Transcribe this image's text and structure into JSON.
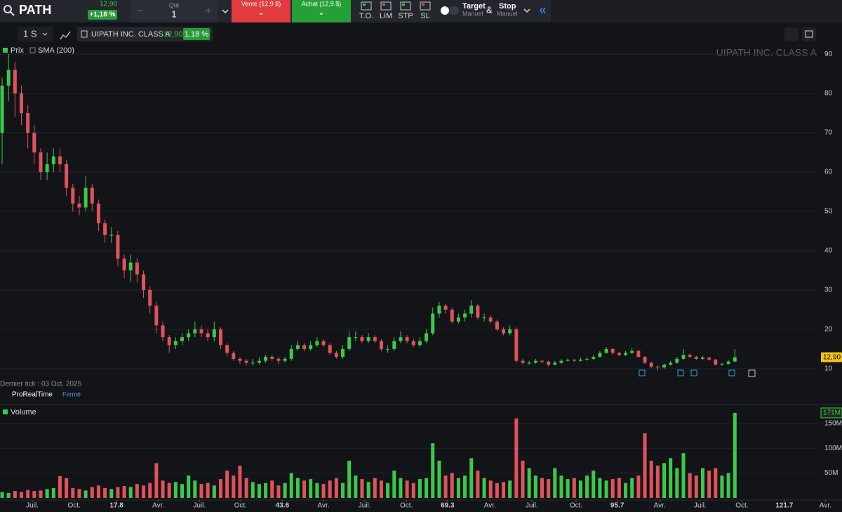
{
  "toolbar": {
    "symbol": "PATH",
    "price": "12,90",
    "change": "+1,18 %",
    "qty_label": "Qté",
    "qty": "1",
    "sell": "Vente (12,9 $)",
    "sell_value": "-",
    "buy": "Achat (12,9 $)",
    "buy_value": "-",
    "order_types": [
      "T.O.",
      "LIM",
      "STP",
      "SL"
    ],
    "target": "Target",
    "target_mode": "Manuel",
    "amp": "&",
    "stop": "Stop",
    "stop_mode": "Manuel"
  },
  "chart_header": {
    "interval": "1 S",
    "instrument": "UIPATH INC. CLASS A",
    "price": "12,90",
    "change": "1.18 %",
    "legend": [
      "Prix",
      "SMA (200)"
    ],
    "watermark": "UIPATH INC. CLASS A",
    "last_tick": "Dernier tick : 03 Oct. 2025",
    "brand": "ProRealTime",
    "status": "Fermé"
  },
  "chart_data": [
    {
      "type": "candlestick",
      "up_color": "#3cc94a",
      "down_color": "#e0525c",
      "grid": true,
      "xlim": [
        -0.33,
        130.67
      ],
      "ylim": [
        7.3,
        92.7
      ],
      "yticks": [
        10,
        20,
        30,
        40,
        50,
        60,
        70,
        80,
        90
      ],
      "last_value_label": "12,90",
      "open": [
        70,
        82,
        86,
        80,
        75,
        70,
        65,
        60,
        62,
        64,
        62,
        56,
        52,
        51,
        56,
        52,
        47,
        44,
        44,
        38,
        35,
        37,
        34,
        30,
        26,
        21,
        18,
        16,
        17,
        18,
        19,
        20,
        19,
        18,
        20,
        16,
        14,
        12.5,
        12,
        11.5,
        11.5,
        12,
        13,
        12.5,
        12,
        12.5,
        15,
        16,
        15,
        16,
        17,
        16,
        14,
        13,
        15,
        18,
        18,
        17,
        18,
        17,
        15,
        15,
        17,
        18,
        17,
        16,
        17,
        19,
        24,
        26,
        25,
        22,
        23,
        24,
        26,
        23,
        23,
        22,
        20,
        19,
        20,
        12,
        11.5,
        11.5,
        12,
        11.8,
        11,
        11.5,
        12,
        12.2,
        12,
        12.3,
        12.5,
        13,
        14,
        15,
        14,
        13.5,
        14,
        14.5,
        13,
        11.5,
        10.5,
        10.3,
        11,
        11.5,
        12.5,
        13.5,
        13,
        12.5,
        12.8,
        12.3,
        11,
        11.2,
        11.8
      ],
      "high": [
        84,
        90,
        88,
        82,
        77,
        72,
        66,
        65,
        66,
        66,
        63,
        57,
        54,
        59,
        57,
        53,
        48,
        46,
        45,
        39,
        39,
        38,
        35,
        31,
        27,
        22,
        18.5,
        18,
        19,
        20,
        22,
        21,
        20,
        22,
        20.5,
        16.5,
        14.5,
        13,
        12.5,
        12.5,
        12.8,
        13.5,
        13.5,
        13,
        13,
        16,
        17,
        16.5,
        17,
        18,
        17.5,
        16.5,
        14.5,
        16,
        19.5,
        19.5,
        18.5,
        19,
        18.5,
        17.5,
        16,
        18,
        19.5,
        18.5,
        17.5,
        18,
        20,
        25.5,
        27,
        26.5,
        25.5,
        24,
        25,
        27.5,
        26.5,
        24,
        23.5,
        22.5,
        20.5,
        21,
        20.5,
        12.5,
        12,
        12.5,
        12.2,
        12,
        12,
        12.5,
        12.6,
        12.5,
        12.8,
        13,
        13.5,
        14.5,
        15.5,
        15.2,
        14.3,
        14.5,
        15.2,
        14.8,
        13.2,
        11.8,
        10.8,
        11.3,
        12,
        13,
        15,
        13.8,
        13.3,
        13.2,
        13,
        12.5,
        11.5,
        12.2,
        15
      ],
      "low": [
        62,
        78,
        74,
        72,
        66,
        62,
        58,
        58,
        60,
        60,
        54,
        50,
        49,
        50,
        50,
        45,
        42,
        42,
        36,
        33,
        32,
        32,
        28,
        24,
        19,
        17,
        14,
        15,
        16,
        17,
        18,
        18,
        17,
        17,
        15,
        13,
        12,
        11.2,
        10.8,
        10.8,
        11,
        11.5,
        12,
        11.2,
        11.5,
        12,
        14.5,
        14.5,
        14.5,
        15.5,
        15.5,
        13.5,
        12.5,
        12.5,
        14.5,
        17,
        16.5,
        16.5,
        16.5,
        14.5,
        14,
        14.5,
        16.5,
        16.5,
        15.5,
        15.5,
        16.5,
        18.5,
        23,
        24,
        21.5,
        21.5,
        22,
        23,
        22.5,
        22,
        21.5,
        19.5,
        18.5,
        18.5,
        11.5,
        11,
        11,
        11.2,
        11.3,
        10.5,
        10.8,
        11.2,
        11.8,
        11.7,
        11.8,
        12,
        12.2,
        12.8,
        13.8,
        13.6,
        13.2,
        13.2,
        13.8,
        12.8,
        11.2,
        10.2,
        9.5,
        10,
        10.8,
        11.2,
        12.2,
        12.8,
        12.2,
        12.3,
        12,
        10.8,
        10.8,
        11,
        11.6
      ],
      "close": [
        82,
        86,
        80,
        75,
        70,
        65,
        60,
        62,
        64,
        62,
        56,
        52,
        51,
        56,
        52,
        47,
        44,
        44,
        38,
        35,
        37,
        34,
        30,
        26,
        21,
        18,
        16,
        17,
        18,
        19,
        20,
        19,
        18,
        20,
        16,
        14,
        12.5,
        12,
        11.5,
        11.5,
        12,
        13,
        12.5,
        12,
        12.5,
        15,
        16,
        15,
        16,
        17,
        16,
        14,
        13,
        15,
        18,
        18,
        17,
        18,
        17,
        15,
        15,
        17,
        18,
        17,
        16,
        17,
        19,
        24,
        26,
        25,
        22,
        23,
        24,
        26,
        23,
        23,
        22,
        20,
        19,
        20,
        12,
        11.5,
        11.5,
        12,
        11.8,
        11,
        11.5,
        12,
        12.2,
        12,
        12.3,
        12.5,
        13,
        14,
        15,
        14,
        13.5,
        14,
        14.5,
        13,
        11.5,
        10.5,
        10.3,
        11,
        11.5,
        12.5,
        13.5,
        13,
        12.5,
        12.8,
        12.3,
        11,
        11.2,
        11.8,
        12.9
      ]
    },
    {
      "type": "bar",
      "title": "Volume",
      "grid": true,
      "xlim": [
        -0.33,
        130.67
      ],
      "ylim": [
        0,
        185
      ],
      "yticks": [
        {
          "value": 50,
          "label": "50M"
        },
        {
          "value": 100,
          "label": "100M"
        },
        {
          "value": 150,
          "label": "150M"
        }
      ],
      "last_value_label": "171M",
      "xticks": [
        {
          "value": 4.7,
          "label": "Juil."
        },
        {
          "value": 11.2,
          "label": "Oct."
        },
        17.8,
        {
          "value": 24.3,
          "label": "Avr."
        },
        {
          "value": 30.7,
          "label": "Juil."
        },
        {
          "value": 37.1,
          "label": "Oct."
        },
        43.6,
        {
          "value": 50.0,
          "label": "Avr."
        },
        {
          "value": 56.4,
          "label": "Juil."
        },
        {
          "value": 62.9,
          "label": "Oct."
        },
        69.3,
        {
          "value": 75.9,
          "label": "Avr."
        },
        {
          "value": 82.4,
          "label": "Juil."
        },
        {
          "value": 89.3,
          "label": "Oct."
        },
        95.7,
        {
          "value": 102.3,
          "label": "Avr."
        },
        {
          "value": 108.6,
          "label": "Juil."
        },
        {
          "value": 115.1,
          "label": "Oct."
        },
        121.7,
        {
          "value": 128.1,
          "label": "Avr."
        }
      ],
      "values": [
        12,
        10,
        14,
        12,
        16,
        14,
        15,
        18,
        20,
        44,
        40,
        20,
        18,
        15,
        22,
        25,
        20,
        18,
        22,
        24,
        22,
        28,
        25,
        30,
        70,
        35,
        30,
        32,
        28,
        45,
        35,
        28,
        30,
        25,
        38,
        55,
        45,
        65,
        40,
        32,
        28,
        30,
        35,
        25,
        30,
        50,
        40,
        35,
        38,
        30,
        28,
        35,
        40,
        30,
        75,
        45,
        38,
        32,
        40,
        35,
        30,
        55,
        40,
        35,
        30,
        38,
        40,
        110,
        75,
        45,
        50,
        40,
        45,
        80,
        55,
        40,
        35,
        30,
        32,
        35,
        160,
        75,
        60,
        45,
        40,
        38,
        60,
        45,
        38,
        40,
        35,
        45,
        55,
        40,
        35,
        38,
        40,
        30,
        40,
        45,
        130,
        75,
        65,
        70,
        80,
        60,
        90,
        50,
        45,
        60,
        55,
        60,
        45,
        50,
        171
      ]
    }
  ]
}
